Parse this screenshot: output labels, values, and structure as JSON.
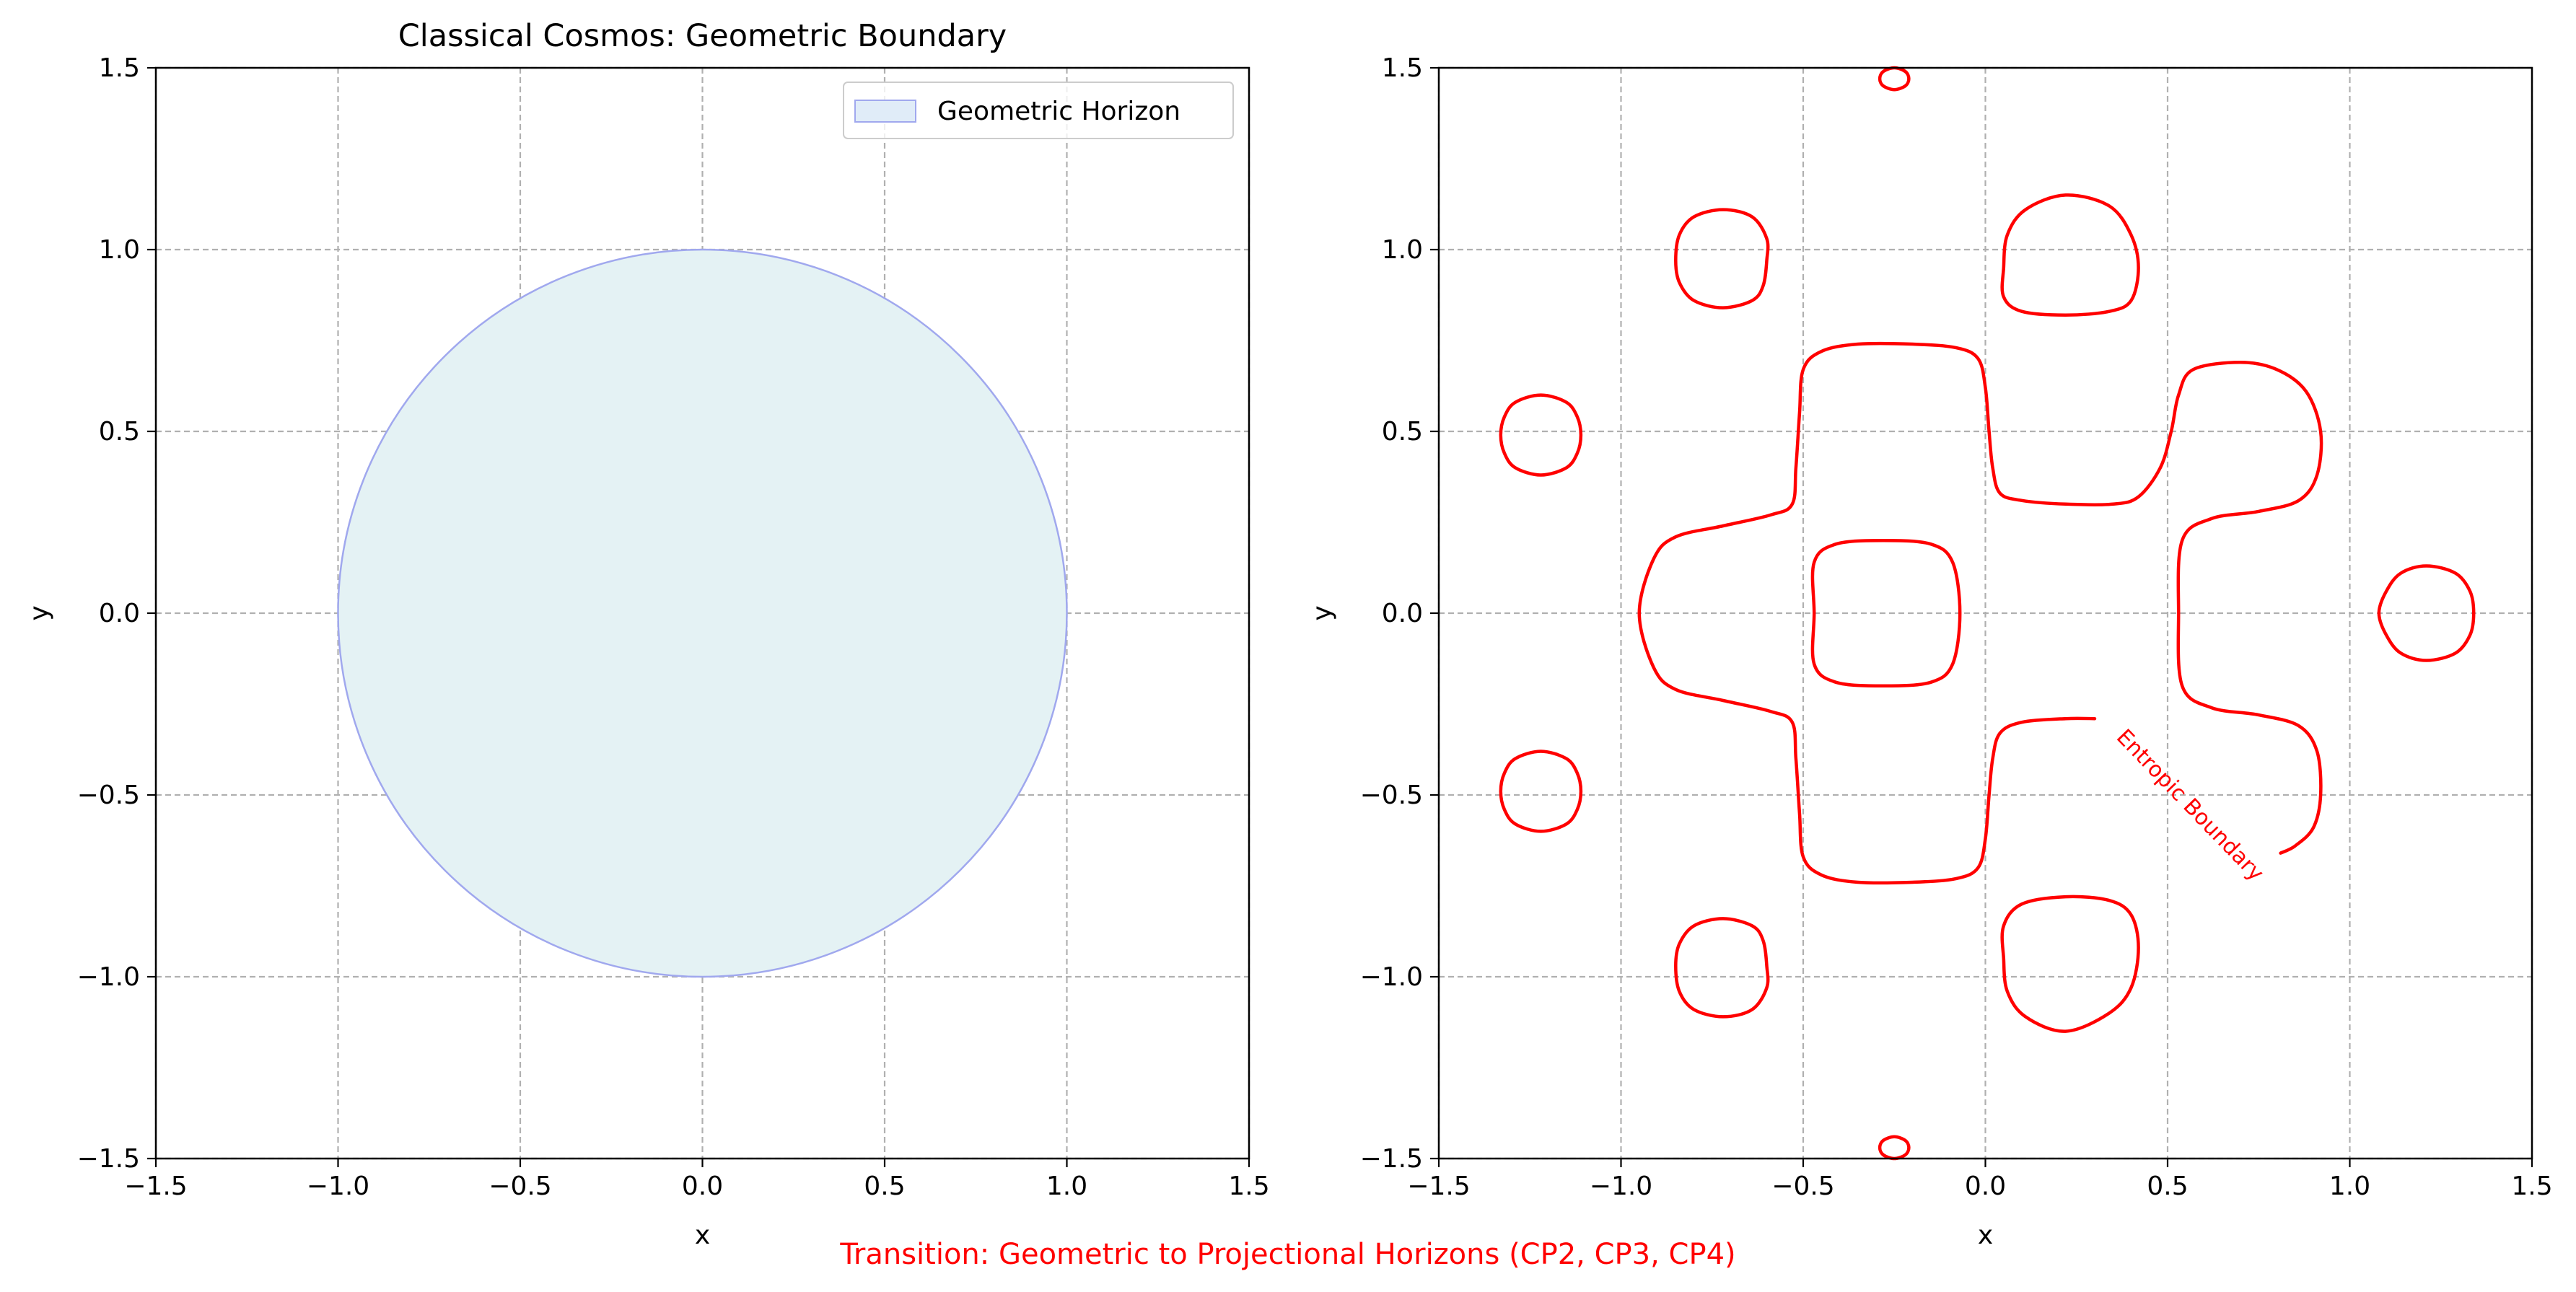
{
  "figure": {
    "suptitle": "Transition: Geometric to Projectional Horizons (CP2, CP3, CP4)",
    "suptitle_color": "#ff0000"
  },
  "chart_data": [
    {
      "type": "area",
      "title": "Classical Cosmos: Geometric Boundary",
      "xlabel": "x",
      "ylabel": "y",
      "xlim": [
        -1.5,
        1.5
      ],
      "ylim": [
        -1.5,
        1.5
      ],
      "xticks": [
        -1.5,
        -1.0,
        -0.5,
        0.0,
        0.5,
        1.0,
        1.5
      ],
      "yticks": [
        -1.5,
        -1.0,
        -0.5,
        0.0,
        0.5,
        1.0,
        1.5
      ],
      "xtick_labels": [
        "−1.5",
        "−1.0",
        "−0.5",
        "0.0",
        "0.5",
        "1.0",
        "1.5"
      ],
      "ytick_labels": [
        "−1.5",
        "−1.0",
        "−0.5",
        "0.0",
        "0.5",
        "1.0",
        "1.5"
      ],
      "grid": true,
      "legend": {
        "position": "upper right",
        "entries": [
          "Geometric Horizon"
        ]
      },
      "series": [
        {
          "name": "Geometric Horizon",
          "shape": "circle",
          "center": [
            0,
            0
          ],
          "radius": 1.0,
          "fill_color": "#e4f2f4",
          "edge_color": "#a0a8ee"
        }
      ]
    },
    {
      "type": "line",
      "title": "",
      "xlabel": "x",
      "ylabel": "y",
      "xlim": [
        -1.5,
        1.5
      ],
      "ylim": [
        -1.5,
        1.5
      ],
      "xticks": [
        -1.5,
        -1.0,
        -0.5,
        0.0,
        0.5,
        1.0,
        1.5
      ],
      "yticks": [
        -1.5,
        -1.0,
        -0.5,
        0.0,
        0.5,
        1.0,
        1.5
      ],
      "xtick_labels": [
        "−1.5",
        "−1.0",
        "−0.5",
        "0.0",
        "0.5",
        "1.0",
        "1.5"
      ],
      "ytick_labels": [
        "−1.5",
        "−1.0",
        "−0.5",
        "0.0",
        "0.5",
        "1.0",
        "1.5"
      ],
      "grid": true,
      "contour_color": "#ff0000",
      "annotation": {
        "text": "Entropic Boundary",
        "x": 0.56,
        "y": -0.53,
        "rotation_deg": -46
      },
      "series": [
        {
          "id": "main-contour",
          "closed": false,
          "points": [
            [
              0.3,
              -0.29
            ],
            [
              0.22,
              -0.29
            ],
            [
              0.1,
              -0.3
            ],
            [
              0.04,
              -0.33
            ],
            [
              0.02,
              -0.4
            ],
            [
              0.01,
              -0.5
            ],
            [
              0.0,
              -0.62
            ],
            [
              -0.02,
              -0.7
            ],
            [
              -0.08,
              -0.73
            ],
            [
              -0.2,
              -0.74
            ],
            [
              -0.35,
              -0.74
            ],
            [
              -0.45,
              -0.72
            ],
            [
              -0.5,
              -0.67
            ],
            [
              -0.51,
              -0.55
            ],
            [
              -0.52,
              -0.4
            ],
            [
              -0.53,
              -0.3
            ],
            [
              -0.59,
              -0.27
            ],
            [
              -0.72,
              -0.24
            ],
            [
              -0.85,
              -0.21
            ],
            [
              -0.91,
              -0.15
            ],
            [
              -0.95,
              0.0
            ],
            [
              -0.91,
              0.15
            ],
            [
              -0.85,
              0.21
            ],
            [
              -0.72,
              0.24
            ],
            [
              -0.59,
              0.27
            ],
            [
              -0.53,
              0.3
            ],
            [
              -0.52,
              0.4
            ],
            [
              -0.51,
              0.55
            ],
            [
              -0.5,
              0.67
            ],
            [
              -0.45,
              0.72
            ],
            [
              -0.35,
              0.74
            ],
            [
              -0.2,
              0.74
            ],
            [
              -0.08,
              0.73
            ],
            [
              -0.02,
              0.7
            ],
            [
              0.0,
              0.62
            ],
            [
              0.01,
              0.5
            ],
            [
              0.02,
              0.4
            ],
            [
              0.04,
              0.33
            ],
            [
              0.1,
              0.31
            ],
            [
              0.22,
              0.3
            ],
            [
              0.35,
              0.3
            ],
            [
              0.42,
              0.32
            ],
            [
              0.48,
              0.4
            ],
            [
              0.51,
              0.5
            ],
            [
              0.53,
              0.6
            ],
            [
              0.57,
              0.67
            ],
            [
              0.7,
              0.69
            ],
            [
              0.8,
              0.67
            ],
            [
              0.88,
              0.61
            ],
            [
              0.92,
              0.5
            ],
            [
              0.91,
              0.38
            ],
            [
              0.86,
              0.31
            ],
            [
              0.75,
              0.28
            ],
            [
              0.62,
              0.26
            ],
            [
              0.54,
              0.2
            ],
            [
              0.53,
              0.0
            ],
            [
              0.54,
              -0.2
            ],
            [
              0.62,
              -0.26
            ],
            [
              0.75,
              -0.28
            ],
            [
              0.86,
              -0.31
            ],
            [
              0.91,
              -0.38
            ],
            [
              0.92,
              -0.5
            ],
            [
              0.9,
              -0.59
            ],
            [
              0.85,
              -0.64
            ],
            [
              0.81,
              -0.66
            ]
          ]
        },
        {
          "id": "center-loop",
          "closed": true,
          "points": [
            [
              -0.28,
              0.2
            ],
            [
              -0.15,
              0.19
            ],
            [
              -0.09,
              0.14
            ],
            [
              -0.07,
              0.0
            ],
            [
              -0.09,
              -0.14
            ],
            [
              -0.15,
              -0.19
            ],
            [
              -0.28,
              -0.2
            ],
            [
              -0.41,
              -0.19
            ],
            [
              -0.47,
              -0.14
            ],
            [
              -0.47,
              0.0
            ],
            [
              -0.47,
              0.14
            ],
            [
              -0.41,
              0.19
            ]
          ]
        },
        {
          "id": "loop-top-right",
          "closed": true,
          "points": [
            [
              0.22,
              1.15
            ],
            [
              0.34,
              1.12
            ],
            [
              0.4,
              1.04
            ],
            [
              0.42,
              0.95
            ],
            [
              0.4,
              0.86
            ],
            [
              0.34,
              0.83
            ],
            [
              0.22,
              0.82
            ],
            [
              0.1,
              0.83
            ],
            [
              0.05,
              0.87
            ],
            [
              0.05,
              0.95
            ],
            [
              0.06,
              1.04
            ],
            [
              0.11,
              1.11
            ]
          ]
        },
        {
          "id": "loop-bottom-right",
          "closed": true,
          "points": [
            [
              0.22,
              -0.78
            ],
            [
              0.34,
              -0.79
            ],
            [
              0.4,
              -0.83
            ],
            [
              0.42,
              -0.92
            ],
            [
              0.4,
              -1.03
            ],
            [
              0.34,
              -1.1
            ],
            [
              0.22,
              -1.15
            ],
            [
              0.11,
              -1.11
            ],
            [
              0.06,
              -1.04
            ],
            [
              0.05,
              -0.95
            ],
            [
              0.05,
              -0.86
            ],
            [
              0.1,
              -0.8
            ]
          ]
        },
        {
          "id": "loop-top-left",
          "closed": true,
          "points": [
            [
              -0.72,
              1.11
            ],
            [
              -0.64,
              1.09
            ],
            [
              -0.6,
              1.03
            ],
            [
              -0.6,
              0.97
            ],
            [
              -0.61,
              0.9
            ],
            [
              -0.64,
              0.86
            ],
            [
              -0.72,
              0.84
            ],
            [
              -0.8,
              0.86
            ],
            [
              -0.84,
              0.91
            ],
            [
              -0.85,
              0.97
            ],
            [
              -0.84,
              1.04
            ],
            [
              -0.8,
              1.09
            ]
          ]
        },
        {
          "id": "loop-bottom-left",
          "closed": true,
          "points": [
            [
              -0.72,
              -0.84
            ],
            [
              -0.64,
              -0.86
            ],
            [
              -0.61,
              -0.9
            ],
            [
              -0.6,
              -0.97
            ],
            [
              -0.6,
              -1.03
            ],
            [
              -0.64,
              -1.09
            ],
            [
              -0.72,
              -1.11
            ],
            [
              -0.8,
              -1.09
            ],
            [
              -0.84,
              -1.04
            ],
            [
              -0.85,
              -0.97
            ],
            [
              -0.84,
              -0.91
            ],
            [
              -0.8,
              -0.86
            ]
          ]
        },
        {
          "id": "loop-left-upper",
          "closed": true,
          "points": [
            [
              -1.22,
              0.6
            ],
            [
              -1.15,
              0.58
            ],
            [
              -1.12,
              0.54
            ],
            [
              -1.11,
              0.49
            ],
            [
              -1.12,
              0.44
            ],
            [
              -1.15,
              0.4
            ],
            [
              -1.22,
              0.38
            ],
            [
              -1.29,
              0.4
            ],
            [
              -1.32,
              0.44
            ],
            [
              -1.33,
              0.49
            ],
            [
              -1.32,
              0.54
            ],
            [
              -1.29,
              0.58
            ]
          ]
        },
        {
          "id": "loop-left-lower",
          "closed": true,
          "points": [
            [
              -1.22,
              -0.38
            ],
            [
              -1.15,
              -0.4
            ],
            [
              -1.12,
              -0.44
            ],
            [
              -1.11,
              -0.49
            ],
            [
              -1.12,
              -0.54
            ],
            [
              -1.15,
              -0.58
            ],
            [
              -1.22,
              -0.6
            ],
            [
              -1.29,
              -0.58
            ],
            [
              -1.32,
              -0.54
            ],
            [
              -1.33,
              -0.49
            ],
            [
              -1.32,
              -0.44
            ],
            [
              -1.29,
              -0.4
            ]
          ]
        },
        {
          "id": "loop-right",
          "closed": true,
          "points": [
            [
              1.21,
              0.13
            ],
            [
              1.29,
              0.11
            ],
            [
              1.33,
              0.06
            ],
            [
              1.34,
              0.0
            ],
            [
              1.33,
              -0.06
            ],
            [
              1.29,
              -0.11
            ],
            [
              1.21,
              -0.13
            ],
            [
              1.14,
              -0.11
            ],
            [
              1.1,
              -0.06
            ],
            [
              1.08,
              0.0
            ],
            [
              1.1,
              0.06
            ],
            [
              1.14,
              0.11
            ]
          ]
        },
        {
          "id": "loop-top-tiny",
          "closed": true,
          "points": [
            [
              -0.25,
              1.5
            ],
            [
              -0.22,
              1.49
            ],
            [
              -0.21,
              1.47
            ],
            [
              -0.22,
              1.45
            ],
            [
              -0.25,
              1.44
            ],
            [
              -0.28,
              1.45
            ],
            [
              -0.29,
              1.47
            ],
            [
              -0.28,
              1.49
            ]
          ]
        },
        {
          "id": "loop-bottom-tiny",
          "closed": true,
          "points": [
            [
              -0.25,
              -1.44
            ],
            [
              -0.22,
              -1.45
            ],
            [
              -0.21,
              -1.47
            ],
            [
              -0.22,
              -1.49
            ],
            [
              -0.25,
              -1.5
            ],
            [
              -0.28,
              -1.49
            ],
            [
              -0.29,
              -1.47
            ],
            [
              -0.28,
              -1.45
            ]
          ]
        }
      ]
    }
  ]
}
